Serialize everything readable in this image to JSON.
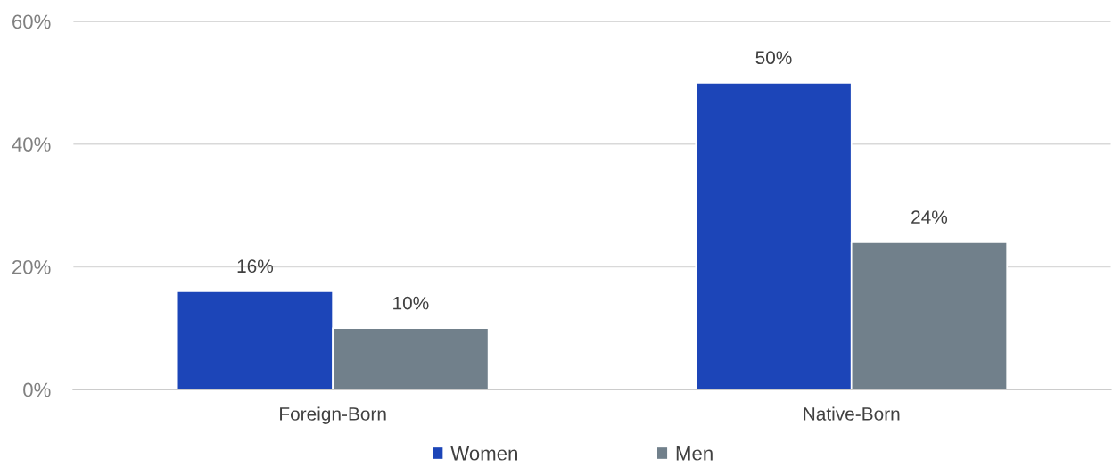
{
  "chart_data": {
    "type": "bar",
    "categories": [
      "Foreign-Born",
      "Native-Born"
    ],
    "series": [
      {
        "name": "Women",
        "color": "#1c45b8",
        "values": [
          16,
          50
        ],
        "value_labels": [
          "16%",
          "50%"
        ]
      },
      {
        "name": "Men",
        "color": "#71808b",
        "values": [
          10,
          24
        ],
        "value_labels": [
          "10%",
          "24%"
        ]
      }
    ],
    "ylim": [
      0,
      60
    ],
    "yticks": [
      {
        "value": 0,
        "label": "0%"
      },
      {
        "value": 20,
        "label": "20%"
      },
      {
        "value": 40,
        "label": "40%"
      },
      {
        "value": 60,
        "label": "60%"
      }
    ],
    "grid": "y",
    "legend": "bottom"
  }
}
